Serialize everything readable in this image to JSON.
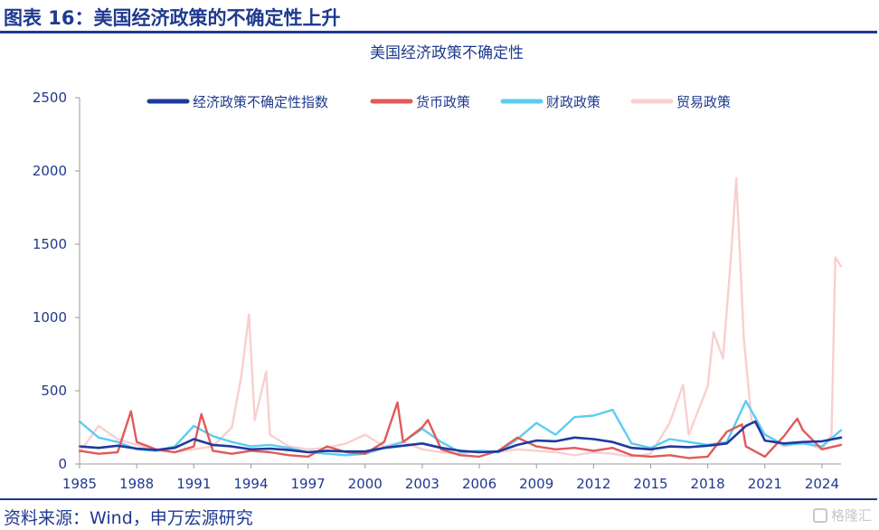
{
  "figure": {
    "title": "图表 16：美国经济政策的不确定性上升",
    "source": "资料来源：Wind，申万宏源研究",
    "watermark": "格隆汇"
  },
  "chart_data": {
    "type": "line",
    "title": "美国经济政策不确定性",
    "xlabel": "",
    "ylabel": "",
    "ylim": [
      0,
      2500
    ],
    "yticks": [
      0,
      500,
      1000,
      1500,
      2000,
      2500
    ],
    "xticks": [
      "1985",
      "1988",
      "1991",
      "1994",
      "1997",
      "2000",
      "2003",
      "2006",
      "2009",
      "2012",
      "2015",
      "2018",
      "2021",
      "2024"
    ],
    "xrange": [
      1985,
      2025
    ],
    "grid": false,
    "legend_position": "top",
    "series": [
      {
        "name": "经济政策不确定性指数",
        "color": "#1f3a9e",
        "points": [
          [
            1985,
            120
          ],
          [
            1986,
            110
          ],
          [
            1987,
            125
          ],
          [
            1988,
            105
          ],
          [
            1989,
            95
          ],
          [
            1990,
            110
          ],
          [
            1991,
            170
          ],
          [
            1992,
            130
          ],
          [
            1993,
            120
          ],
          [
            1994,
            100
          ],
          [
            1995,
            105
          ],
          [
            1996,
            95
          ],
          [
            1997,
            80
          ],
          [
            1998,
            90
          ],
          [
            1999,
            85
          ],
          [
            2000,
            85
          ],
          [
            2001,
            110
          ],
          [
            2002,
            125
          ],
          [
            2003,
            140
          ],
          [
            2004,
            110
          ],
          [
            2005,
            90
          ],
          [
            2006,
            80
          ],
          [
            2007,
            85
          ],
          [
            2008,
            130
          ],
          [
            2009,
            160
          ],
          [
            2010,
            155
          ],
          [
            2011,
            180
          ],
          [
            2012,
            170
          ],
          [
            2013,
            150
          ],
          [
            2014,
            110
          ],
          [
            2015,
            100
          ],
          [
            2016,
            120
          ],
          [
            2017,
            115
          ],
          [
            2018,
            125
          ],
          [
            2019,
            140
          ],
          [
            2020,
            260
          ],
          [
            2020.5,
            290
          ],
          [
            2021,
            160
          ],
          [
            2022,
            140
          ],
          [
            2023,
            150
          ],
          [
            2024,
            155
          ],
          [
            2025,
            180
          ]
        ]
      },
      {
        "name": "货币政策",
        "color": "#e05a5a",
        "points": [
          [
            1985,
            90
          ],
          [
            1986,
            70
          ],
          [
            1987,
            80
          ],
          [
            1987.7,
            360
          ],
          [
            1988,
            150
          ],
          [
            1989,
            100
          ],
          [
            1990,
            80
          ],
          [
            1991,
            120
          ],
          [
            1991.4,
            340
          ],
          [
            1992,
            90
          ],
          [
            1993,
            70
          ],
          [
            1994,
            90
          ],
          [
            1995,
            80
          ],
          [
            1996,
            60
          ],
          [
            1997,
            50
          ],
          [
            1998,
            120
          ],
          [
            1999,
            80
          ],
          [
            2000,
            70
          ],
          [
            2001,
            150
          ],
          [
            2001.7,
            420
          ],
          [
            2002,
            150
          ],
          [
            2003,
            250
          ],
          [
            2003.3,
            300
          ],
          [
            2004,
            100
          ],
          [
            2005,
            60
          ],
          [
            2006,
            50
          ],
          [
            2007,
            90
          ],
          [
            2008,
            180
          ],
          [
            2009,
            120
          ],
          [
            2010,
            100
          ],
          [
            2011,
            110
          ],
          [
            2012,
            90
          ],
          [
            2013,
            110
          ],
          [
            2014,
            60
          ],
          [
            2015,
            50
          ],
          [
            2016,
            60
          ],
          [
            2017,
            40
          ],
          [
            2018,
            50
          ],
          [
            2019,
            220
          ],
          [
            2019.8,
            270
          ],
          [
            2020,
            120
          ],
          [
            2021,
            50
          ],
          [
            2022,
            190
          ],
          [
            2022.7,
            310
          ],
          [
            2023,
            230
          ],
          [
            2024,
            100
          ],
          [
            2025,
            130
          ]
        ]
      },
      {
        "name": "财政政策",
        "color": "#5bcdf2",
        "points": [
          [
            1985,
            290
          ],
          [
            1986,
            180
          ],
          [
            1987,
            150
          ],
          [
            1988,
            100
          ],
          [
            1989,
            90
          ],
          [
            1990,
            120
          ],
          [
            1991,
            260
          ],
          [
            1992,
            190
          ],
          [
            1993,
            150
          ],
          [
            1994,
            120
          ],
          [
            1995,
            130
          ],
          [
            1996,
            110
          ],
          [
            1997,
            80
          ],
          [
            1998,
            70
          ],
          [
            1999,
            60
          ],
          [
            2000,
            70
          ],
          [
            2001,
            110
          ],
          [
            2002,
            150
          ],
          [
            2003,
            240
          ],
          [
            2004,
            150
          ],
          [
            2005,
            80
          ],
          [
            2006,
            90
          ],
          [
            2007,
            80
          ],
          [
            2008,
            170
          ],
          [
            2009,
            280
          ],
          [
            2010,
            200
          ],
          [
            2011,
            320
          ],
          [
            2012,
            330
          ],
          [
            2013,
            370
          ],
          [
            2014,
            140
          ],
          [
            2015,
            110
          ],
          [
            2016,
            170
          ],
          [
            2017,
            150
          ],
          [
            2018,
            130
          ],
          [
            2019,
            150
          ],
          [
            2020,
            430
          ],
          [
            2021,
            200
          ],
          [
            2022,
            130
          ],
          [
            2023,
            140
          ],
          [
            2024,
            120
          ],
          [
            2025,
            230
          ]
        ]
      },
      {
        "name": "贸易政策",
        "color": "#f9cfcf",
        "points": [
          [
            1985,
            80
          ],
          [
            1986,
            260
          ],
          [
            1987,
            170
          ],
          [
            1988,
            130
          ],
          [
            1989,
            90
          ],
          [
            1990,
            80
          ],
          [
            1991,
            100
          ],
          [
            1992,
            120
          ],
          [
            1993,
            250
          ],
          [
            1993.5,
            600
          ],
          [
            1993.9,
            1020
          ],
          [
            1994.2,
            300
          ],
          [
            1994.8,
            630
          ],
          [
            1995,
            200
          ],
          [
            1996,
            120
          ],
          [
            1997,
            100
          ],
          [
            1998,
            110
          ],
          [
            1999,
            140
          ],
          [
            2000,
            200
          ],
          [
            2001,
            120
          ],
          [
            2002,
            150
          ],
          [
            2003,
            100
          ],
          [
            2004,
            80
          ],
          [
            2005,
            70
          ],
          [
            2006,
            90
          ],
          [
            2007,
            80
          ],
          [
            2008,
            100
          ],
          [
            2009,
            90
          ],
          [
            2010,
            80
          ],
          [
            2011,
            60
          ],
          [
            2012,
            80
          ],
          [
            2013,
            70
          ],
          [
            2014,
            50
          ],
          [
            2015,
            70
          ],
          [
            2016,
            280
          ],
          [
            2016.7,
            540
          ],
          [
            2017,
            200
          ],
          [
            2018,
            530
          ],
          [
            2018.3,
            900
          ],
          [
            2018.8,
            720
          ],
          [
            2019.2,
            1380
          ],
          [
            2019.5,
            1950
          ],
          [
            2019.9,
            850
          ],
          [
            2020.3,
            300
          ],
          [
            2021,
            200
          ],
          [
            2022,
            120
          ],
          [
            2023,
            150
          ],
          [
            2024,
            100
          ],
          [
            2024.5,
            200
          ],
          [
            2024.7,
            1410
          ],
          [
            2025,
            1350
          ]
        ]
      }
    ]
  },
  "axis": {
    "tick_color": "#9a9a9a"
  }
}
